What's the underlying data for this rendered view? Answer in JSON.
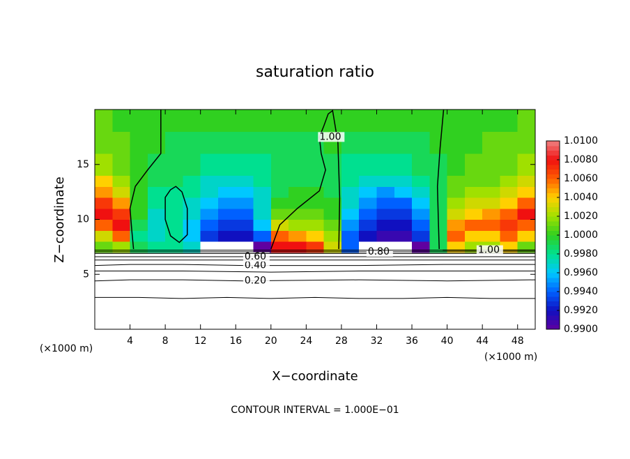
{
  "chart_data": {
    "type": "contour",
    "title": "saturation ratio",
    "xlabel": "X−coordinate",
    "ylabel": "Z−coordinate",
    "x_unit": "(×1000 m)",
    "x_unit_right": "(×1000 m)",
    "footnote": "CONTOUR INTERVAL = 1.000E−01",
    "xlim": [
      0,
      50
    ],
    "ylim": [
      0,
      20
    ],
    "xticks": [
      4,
      8,
      12,
      16,
      20,
      24,
      28,
      32,
      36,
      40,
      44,
      48
    ],
    "yticks": [
      5,
      10,
      15
    ],
    "x_edges": [
      0,
      2,
      4,
      6,
      8,
      10,
      12,
      14,
      16,
      18,
      20,
      22,
      24,
      26,
      28,
      30,
      32,
      34,
      36,
      38,
      40,
      42,
      44,
      46,
      48,
      50
    ],
    "y_edges": [
      7,
      8,
      9,
      10,
      11,
      12,
      13,
      14,
      16,
      18,
      20
    ],
    "z": [
      [
        1.001,
        1.002,
        0.999,
        0.998,
        0.998,
        0.997,
        0.985,
        0.98,
        0.98,
        0.99,
        1.008,
        1.008,
        1.007,
        1.003,
        0.994,
        0.985,
        0.98,
        0.985,
        0.99,
        0.999,
        1.004,
        1.002,
        1.002,
        1.004,
        1.001
      ],
      [
        1.003,
        1.006,
        0.998,
        0.997,
        0.998,
        0.996,
        0.993,
        0.992,
        0.992,
        0.994,
        1.006,
        1.005,
        1.004,
        1.002,
        0.994,
        0.992,
        0.991,
        0.991,
        0.993,
        0.999,
        1.006,
        1.004,
        1.004,
        1.006,
        1.004
      ],
      [
        1.006,
        1.008,
        0.999,
        0.997,
        0.998,
        0.996,
        0.994,
        0.993,
        0.993,
        0.996,
        1.003,
        1.002,
        1.002,
        1.001,
        0.995,
        0.993,
        0.992,
        0.992,
        0.994,
        0.999,
        1.005,
        1.006,
        1.006,
        1.007,
        1.006
      ],
      [
        1.008,
        1.007,
        1.0,
        0.997,
        0.998,
        0.997,
        0.995,
        0.994,
        0.994,
        0.997,
        1.001,
        1.001,
        1.001,
        1.0,
        0.996,
        0.994,
        0.993,
        0.993,
        0.995,
        0.999,
        1.003,
        1.004,
        1.005,
        1.006,
        1.008
      ],
      [
        1.007,
        1.005,
        1.0,
        0.998,
        0.998,
        0.997,
        0.996,
        0.995,
        0.995,
        0.997,
        1.0,
        1.0,
        1.0,
        1.0,
        0.997,
        0.995,
        0.994,
        0.994,
        0.996,
        0.999,
        1.002,
        1.003,
        1.003,
        1.004,
        1.006
      ],
      [
        1.005,
        1.003,
        1.0,
        0.998,
        0.998,
        0.998,
        0.997,
        0.996,
        0.996,
        0.997,
        0.999,
        1.0,
        1.0,
        0.999,
        0.997,
        0.996,
        0.995,
        0.996,
        0.997,
        0.999,
        1.001,
        1.002,
        1.002,
        1.003,
        1.004
      ],
      [
        1.004,
        1.002,
        1.0,
        0.999,
        0.999,
        0.998,
        0.997,
        0.997,
        0.997,
        0.998,
        0.999,
        0.999,
        0.999,
        0.999,
        0.998,
        0.997,
        0.997,
        0.997,
        0.998,
        0.999,
        1.001,
        1.001,
        1.001,
        1.002,
        1.003
      ],
      [
        1.002,
        1.001,
        1.0,
        0.999,
        0.999,
        0.999,
        0.998,
        0.998,
        0.998,
        0.998,
        0.999,
        0.999,
        0.999,
        0.999,
        0.998,
        0.998,
        0.998,
        0.998,
        0.999,
        0.999,
        1.0,
        1.001,
        1.001,
        1.001,
        1.002
      ],
      [
        1.001,
        1.001,
        1.0,
        1.0,
        0.999,
        0.999,
        0.999,
        0.999,
        0.999,
        0.999,
        0.999,
        0.999,
        0.999,
        1.0,
        0.999,
        0.999,
        0.999,
        0.999,
        0.999,
        1.0,
        1.0,
        1.0,
        1.001,
        1.001,
        1.001
      ],
      [
        1.001,
        1.0,
        1.0,
        1.0,
        1.0,
        1.0,
        1.0,
        1.0,
        1.0,
        1.0,
        1.0,
        1.0,
        1.0,
        1.0,
        1.0,
        1.0,
        1.0,
        1.0,
        1.0,
        1.0,
        1.0,
        1.0,
        1.0,
        1.0,
        1.001
      ]
    ],
    "clim": [
      0.99,
      1.01
    ],
    "colormap": [
      "#6000a0",
      "#1010c0",
      "#0060ff",
      "#00c8ff",
      "#00e090",
      "#30d020",
      "#a0e000",
      "#ffd000",
      "#ff6000",
      "#f01010",
      "#f08080"
    ],
    "colorbar_ticks": [
      {
        "value": 0.99,
        "label": "0.9900"
      },
      {
        "value": 0.992,
        "label": "0.9920"
      },
      {
        "value": 0.994,
        "label": "0.9940"
      },
      {
        "value": 0.996,
        "label": "0.9960"
      },
      {
        "value": 0.998,
        "label": "0.9980"
      },
      {
        "value": 1.0,
        "label": "1.0000"
      },
      {
        "value": 1.002,
        "label": "1.0020"
      },
      {
        "value": 1.004,
        "label": "1.0040"
      },
      {
        "value": 1.006,
        "label": "1.0060"
      },
      {
        "value": 1.008,
        "label": "1.0080"
      },
      {
        "value": 1.01,
        "label": "1.0100"
      }
    ],
    "contours": [
      {
        "level": 0.1,
        "x": [
          0,
          5,
          10,
          15,
          20,
          25,
          30,
          35,
          40,
          45,
          50
        ],
        "y": [
          2.9,
          2.9,
          2.8,
          2.9,
          2.8,
          2.9,
          2.8,
          2.8,
          2.9,
          2.8,
          2.8
        ]
      },
      {
        "level": 0.2,
        "label": "0.20",
        "x": [
          0,
          4,
          10,
          17,
          30,
          40,
          50
        ],
        "y": [
          4.4,
          4.5,
          4.5,
          4.4,
          4.5,
          4.4,
          4.5
        ]
      },
      {
        "level": 0.3,
        "x": [
          0,
          10,
          20,
          30,
          40,
          50
        ],
        "y": [
          5.3,
          5.3,
          5.2,
          5.3,
          5.3,
          5.3
        ]
      },
      {
        "level": 0.4,
        "label": "0.40",
        "x": [
          0,
          4,
          10,
          17,
          30,
          40,
          50
        ],
        "y": [
          5.8,
          5.9,
          5.9,
          5.8,
          5.8,
          5.9,
          5.9
        ]
      },
      {
        "level": 0.5,
        "x": [
          0,
          10,
          20,
          30,
          40,
          50
        ],
        "y": [
          6.3,
          6.3,
          6.3,
          6.3,
          6.3,
          6.3
        ]
      },
      {
        "level": 0.6,
        "label": "0.60",
        "x": [
          0,
          4,
          10,
          17,
          30,
          40,
          50
        ],
        "y": [
          6.6,
          6.6,
          6.6,
          6.6,
          6.6,
          6.6,
          6.6
        ]
      },
      {
        "level": 0.7,
        "x": [
          0,
          10,
          20,
          30,
          40,
          50
        ],
        "y": [
          6.9,
          6.9,
          6.9,
          6.9,
          6.9,
          6.9
        ]
      },
      {
        "level": 0.8,
        "label": "0.80",
        "x": [
          0,
          10,
          20,
          31,
          40,
          45,
          50
        ],
        "y": [
          7.05,
          7.05,
          7.05,
          7.05,
          7.05,
          7.05,
          7.05
        ]
      },
      {
        "level": 0.9,
        "x": [
          0,
          10,
          20,
          30,
          40,
          50
        ],
        "y": [
          7.2,
          7.2,
          7.2,
          7.2,
          7.2,
          7.2
        ]
      },
      {
        "level": 1.0,
        "x": [
          4.4,
          4.2,
          4.0,
          4.6,
          6.0,
          7.5,
          7.5,
          7.5
        ],
        "y": [
          7.3,
          9,
          11,
          13,
          14.5,
          16,
          18,
          20
        ]
      },
      {
        "level": 1.0,
        "x": [
          8.6,
          8.0,
          8.0,
          8.6,
          9.6,
          10.5,
          10.5,
          9.9,
          9.2,
          8.6
        ],
        "y": [
          12.7,
          12,
          10,
          8.5,
          7.9,
          8.6,
          11,
          12.5,
          13,
          12.7
        ]
      },
      {
        "level": 1.0,
        "label": "1.00",
        "x": [
          20.0,
          21,
          23,
          25.5,
          26.2,
          25.7,
          25.5,
          26.0,
          26.5,
          27.0,
          27.6,
          27.8,
          27.7
        ],
        "y": [
          7.3,
          9.5,
          11,
          12.6,
          14.5,
          16,
          17.5,
          18.5,
          19.6,
          19.9,
          17,
          12,
          7.3
        ]
      },
      {
        "level": 1.0,
        "x": [
          39.1,
          39.0,
          38.9,
          39.2,
          39.6
        ],
        "y": [
          7.3,
          10,
          13,
          16.5,
          20
        ]
      },
      {
        "level": 1.0,
        "label": "1.00",
        "x": [
          39.5,
          43.5,
          50
        ],
        "y": [
          7.2,
          7.2,
          7.2
        ]
      }
    ]
  }
}
